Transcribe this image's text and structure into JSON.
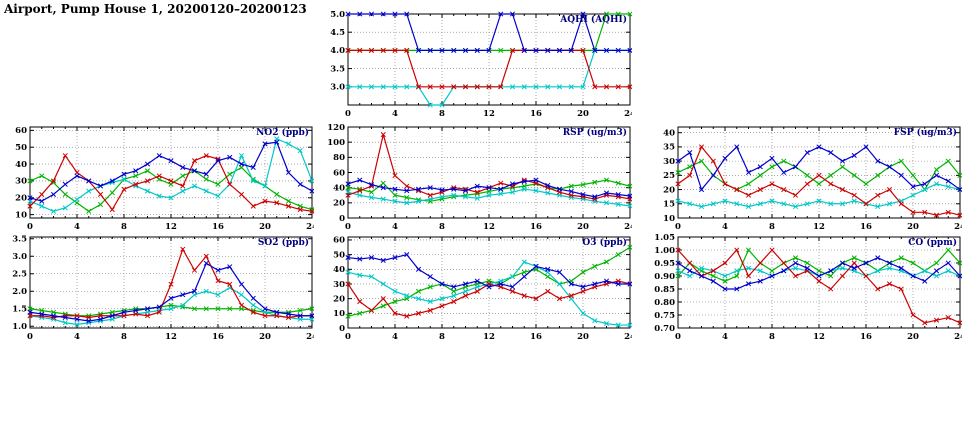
{
  "title": "Airport, Pump House 1, 20200120–20200123",
  "chart_data": [
    {
      "id": "aqhi",
      "type": "line",
      "title": "AQHI (AQHI)",
      "xlim": [
        0,
        24
      ],
      "xticks": [
        0,
        4,
        8,
        12,
        16,
        20,
        24
      ],
      "ylim": [
        2.5,
        5.0
      ],
      "yticks": [
        3.0,
        3.5,
        4.0,
        4.5,
        5.0
      ],
      "y_decimals": 1,
      "grid": true,
      "legend": "none",
      "series": [
        {
          "color": "#00b400",
          "values": [
            4,
            4,
            4,
            4,
            4,
            4,
            4,
            4,
            4,
            4,
            4,
            4,
            4,
            4,
            4,
            4,
            4,
            4,
            4,
            4,
            4,
            4,
            5,
            5,
            5
          ]
        },
        {
          "color": "#00c8c8",
          "values": [
            3,
            3,
            3,
            3,
            3,
            3,
            3,
            2.5,
            2.5,
            3,
            3,
            3,
            3,
            3,
            3,
            3,
            3,
            3,
            3,
            3,
            3,
            4,
            4,
            4,
            4
          ]
        },
        {
          "color": "#cd0000",
          "values": [
            4,
            4,
            4,
            4,
            4,
            4,
            3,
            3,
            3,
            3,
            3,
            3,
            3,
            3,
            4,
            4,
            4,
            4,
            4,
            4,
            4,
            3,
            3,
            3,
            3
          ]
        },
        {
          "color": "#0000cd",
          "values": [
            5,
            5,
            5,
            5,
            5,
            5,
            4,
            4,
            4,
            4,
            4,
            4,
            4,
            5,
            5,
            4,
            4,
            4,
            4,
            4,
            5,
            4,
            4,
            4,
            4
          ]
        }
      ]
    },
    {
      "id": "no2",
      "type": "line",
      "title": "NO2 (ppb)",
      "xlim": [
        0,
        24
      ],
      "xticks": [
        0,
        4,
        8,
        12,
        16,
        20,
        24
      ],
      "ylim": [
        8,
        62
      ],
      "yticks": [
        10,
        20,
        30,
        40,
        50,
        60
      ],
      "y_decimals": 0,
      "grid": true,
      "legend": "none",
      "series": [
        {
          "color": "#00b400",
          "values": [
            30,
            33,
            29,
            22,
            17,
            12,
            16,
            23,
            31,
            33,
            36,
            31,
            28,
            33,
            36,
            31,
            28,
            34,
            38,
            31,
            27,
            22,
            18,
            15,
            13
          ]
        },
        {
          "color": "#00c8c8",
          "values": [
            18,
            15,
            12,
            14,
            19,
            24,
            27,
            29,
            31,
            27,
            24,
            21,
            20,
            24,
            27,
            24,
            21,
            28,
            45,
            30,
            27,
            55,
            52,
            48,
            30
          ]
        },
        {
          "color": "#cd0000",
          "values": [
            15,
            22,
            30,
            45,
            35,
            30,
            22,
            13,
            25,
            28,
            30,
            33,
            30,
            27,
            42,
            45,
            43,
            28,
            22,
            15,
            18,
            17,
            15,
            13,
            12
          ]
        },
        {
          "color": "#0000cd",
          "values": [
            20,
            18,
            22,
            28,
            33,
            30,
            27,
            30,
            34,
            36,
            40,
            45,
            42,
            38,
            36,
            34,
            42,
            44,
            40,
            38,
            52,
            53,
            35,
            28,
            24
          ]
        }
      ]
    },
    {
      "id": "rsp",
      "type": "line",
      "title": "RSP (ug/m3)",
      "xlim": [
        0,
        24
      ],
      "xticks": [
        0,
        4,
        8,
        12,
        16,
        20,
        24
      ],
      "ylim": [
        0,
        120
      ],
      "yticks": [
        0,
        20,
        40,
        60,
        80,
        100,
        120
      ],
      "y_decimals": 0,
      "grid": true,
      "legend": "none",
      "series": [
        {
          "color": "#00b400",
          "values": [
            40,
            38,
            34,
            46,
            30,
            27,
            24,
            22,
            25,
            28,
            30,
            32,
            35,
            38,
            40,
            42,
            45,
            40,
            38,
            42,
            44,
            47,
            50,
            46,
            42
          ]
        },
        {
          "color": "#00c8c8",
          "values": [
            34,
            30,
            27,
            25,
            22,
            20,
            22,
            25,
            28,
            30,
            28,
            26,
            30,
            32,
            34,
            38,
            36,
            33,
            30,
            27,
            25,
            22,
            20,
            18,
            16
          ]
        },
        {
          "color": "#cd0000",
          "values": [
            30,
            36,
            42,
            110,
            56,
            42,
            36,
            30,
            34,
            40,
            38,
            34,
            40,
            46,
            42,
            50,
            46,
            40,
            34,
            30,
            28,
            25,
            30,
            28,
            25
          ]
        },
        {
          "color": "#0000cd",
          "values": [
            45,
            50,
            44,
            40,
            38,
            36,
            38,
            40,
            37,
            38,
            36,
            42,
            40,
            38,
            45,
            48,
            50,
            43,
            38,
            35,
            31,
            28,
            33,
            31,
            29
          ]
        }
      ]
    },
    {
      "id": "fsp",
      "type": "line",
      "title": "FSP (ug/m3)",
      "xlim": [
        0,
        24
      ],
      "xticks": [
        0,
        4,
        8,
        12,
        16,
        20,
        24
      ],
      "ylim": [
        10,
        42
      ],
      "yticks": [
        10,
        15,
        20,
        25,
        30,
        35,
        40
      ],
      "y_decimals": 0,
      "grid": true,
      "legend": "none",
      "series": [
        {
          "color": "#00b400",
          "values": [
            26,
            28,
            30,
            25,
            22,
            20,
            22,
            25,
            28,
            30,
            28,
            25,
            22,
            25,
            28,
            25,
            22,
            25,
            28,
            30,
            25,
            20,
            27,
            30,
            25
          ]
        },
        {
          "color": "#00c8c8",
          "values": [
            16,
            15,
            14,
            15,
            16,
            15,
            14,
            15,
            16,
            15,
            14,
            15,
            16,
            15,
            15,
            16,
            15,
            14,
            15,
            16,
            18,
            20,
            22,
            21,
            20
          ]
        },
        {
          "color": "#cd0000",
          "values": [
            22,
            25,
            35,
            30,
            22,
            20,
            18,
            20,
            22,
            20,
            18,
            22,
            25,
            22,
            20,
            18,
            15,
            18,
            20,
            15,
            12,
            12,
            11,
            12,
            11
          ]
        },
        {
          "color": "#0000cd",
          "values": [
            30,
            33,
            20,
            25,
            31,
            35,
            26,
            28,
            31,
            26,
            28,
            33,
            35,
            33,
            30,
            32,
            35,
            30,
            28,
            25,
            21,
            22,
            25,
            23,
            20
          ]
        }
      ]
    },
    {
      "id": "so2",
      "type": "line",
      "title": "SO2 (ppb)",
      "xlim": [
        0,
        24
      ],
      "xticks": [
        0,
        4,
        8,
        12,
        16,
        20,
        24
      ],
      "ylim": [
        0.95,
        3.55
      ],
      "yticks": [
        1.0,
        1.5,
        2.0,
        2.5,
        3.0,
        3.5
      ],
      "y_decimals": 1,
      "grid": true,
      "legend": "none",
      "series": [
        {
          "color": "#00b400",
          "values": [
            1.5,
            1.45,
            1.4,
            1.35,
            1.3,
            1.3,
            1.35,
            1.4,
            1.45,
            1.5,
            1.5,
            1.55,
            1.6,
            1.55,
            1.5,
            1.5,
            1.5,
            1.5,
            1.5,
            1.45,
            1.4,
            1.4,
            1.4,
            1.45,
            1.5
          ]
        },
        {
          "color": "#00c8c8",
          "values": [
            1.3,
            1.25,
            1.2,
            1.1,
            1.05,
            1.1,
            1.15,
            1.2,
            1.3,
            1.35,
            1.4,
            1.45,
            1.5,
            1.6,
            1.9,
            2.0,
            1.9,
            2.1,
            1.9,
            1.6,
            1.4,
            1.3,
            1.25,
            1.2,
            1.2
          ]
        },
        {
          "color": "#cd0000",
          "values": [
            1.3,
            1.3,
            1.25,
            1.3,
            1.3,
            1.25,
            1.3,
            1.3,
            1.3,
            1.35,
            1.3,
            1.4,
            2.2,
            3.2,
            2.6,
            3.0,
            2.3,
            2.2,
            1.6,
            1.4,
            1.3,
            1.3,
            1.25,
            1.3,
            1.3
          ]
        },
        {
          "color": "#0000cd",
          "values": [
            1.4,
            1.35,
            1.3,
            1.25,
            1.2,
            1.15,
            1.2,
            1.3,
            1.4,
            1.45,
            1.5,
            1.55,
            1.8,
            1.9,
            2.0,
            2.8,
            2.6,
            2.7,
            2.2,
            1.8,
            1.5,
            1.4,
            1.35,
            1.3,
            1.3
          ]
        }
      ]
    },
    {
      "id": "o3",
      "type": "line",
      "title": "O3 (ppb)",
      "xlim": [
        0,
        24
      ],
      "xticks": [
        0,
        4,
        8,
        12,
        16,
        20,
        24
      ],
      "ylim": [
        0,
        62
      ],
      "yticks": [
        0,
        10,
        20,
        30,
        40,
        50,
        60
      ],
      "y_decimals": 0,
      "grid": true,
      "legend": "none",
      "series": [
        {
          "color": "#00b400",
          "values": [
            8,
            10,
            12,
            15,
            18,
            20,
            25,
            28,
            30,
            25,
            28,
            30,
            32,
            30,
            35,
            38,
            40,
            35,
            30,
            32,
            38,
            42,
            45,
            50,
            55
          ]
        },
        {
          "color": "#00c8c8",
          "values": [
            38,
            36,
            35,
            30,
            25,
            22,
            20,
            18,
            20,
            22,
            25,
            28,
            30,
            32,
            35,
            45,
            42,
            38,
            30,
            20,
            10,
            5,
            3,
            2,
            2
          ]
        },
        {
          "color": "#cd0000",
          "values": [
            30,
            18,
            12,
            20,
            10,
            8,
            10,
            12,
            15,
            18,
            22,
            25,
            30,
            28,
            25,
            22,
            20,
            25,
            20,
            22,
            25,
            28,
            30,
            32,
            30
          ]
        },
        {
          "color": "#0000cd",
          "values": [
            48,
            47,
            48,
            46,
            48,
            50,
            40,
            35,
            30,
            28,
            30,
            32,
            28,
            30,
            28,
            35,
            42,
            40,
            38,
            30,
            28,
            30,
            32,
            30,
            30
          ]
        }
      ]
    },
    {
      "id": "co",
      "type": "line",
      "title": "CO (ppm)",
      "xlim": [
        0,
        24
      ],
      "xticks": [
        0,
        4,
        8,
        12,
        16,
        20,
        24
      ],
      "ylim": [
        0.7,
        1.05
      ],
      "yticks": [
        0.7,
        0.75,
        0.8,
        0.85,
        0.9,
        0.95,
        1.0,
        1.05
      ],
      "y_decimals": 2,
      "grid": true,
      "legend": "none",
      "series": [
        {
          "color": "#00b400",
          "values": [
            0.9,
            0.95,
            0.92,
            0.9,
            0.88,
            0.9,
            1.0,
            0.95,
            0.92,
            0.95,
            0.97,
            0.95,
            0.92,
            0.9,
            0.95,
            0.97,
            0.95,
            0.92,
            0.95,
            0.97,
            0.95,
            0.92,
            0.95,
            1.0,
            0.95
          ]
        },
        {
          "color": "#00c8c8",
          "values": [
            0.92,
            0.9,
            0.93,
            0.92,
            0.9,
            0.92,
            0.93,
            0.92,
            0.9,
            0.92,
            0.93,
            0.92,
            0.9,
            0.92,
            0.93,
            0.92,
            0.9,
            0.92,
            0.93,
            0.92,
            0.9,
            0.92,
            0.9,
            0.92,
            0.9
          ]
        },
        {
          "color": "#cd0000",
          "values": [
            1.0,
            0.95,
            0.9,
            0.92,
            0.95,
            1.0,
            0.9,
            0.95,
            1.0,
            0.95,
            0.9,
            0.92,
            0.88,
            0.85,
            0.9,
            0.95,
            0.9,
            0.85,
            0.87,
            0.85,
            0.75,
            0.72,
            0.73,
            0.74,
            0.72
          ]
        },
        {
          "color": "#0000cd",
          "values": [
            0.95,
            0.92,
            0.9,
            0.88,
            0.85,
            0.85,
            0.87,
            0.88,
            0.9,
            0.92,
            0.95,
            0.93,
            0.9,
            0.92,
            0.95,
            0.93,
            0.95,
            0.97,
            0.95,
            0.93,
            0.9,
            0.88,
            0.92,
            0.95,
            0.9
          ]
        }
      ]
    }
  ]
}
